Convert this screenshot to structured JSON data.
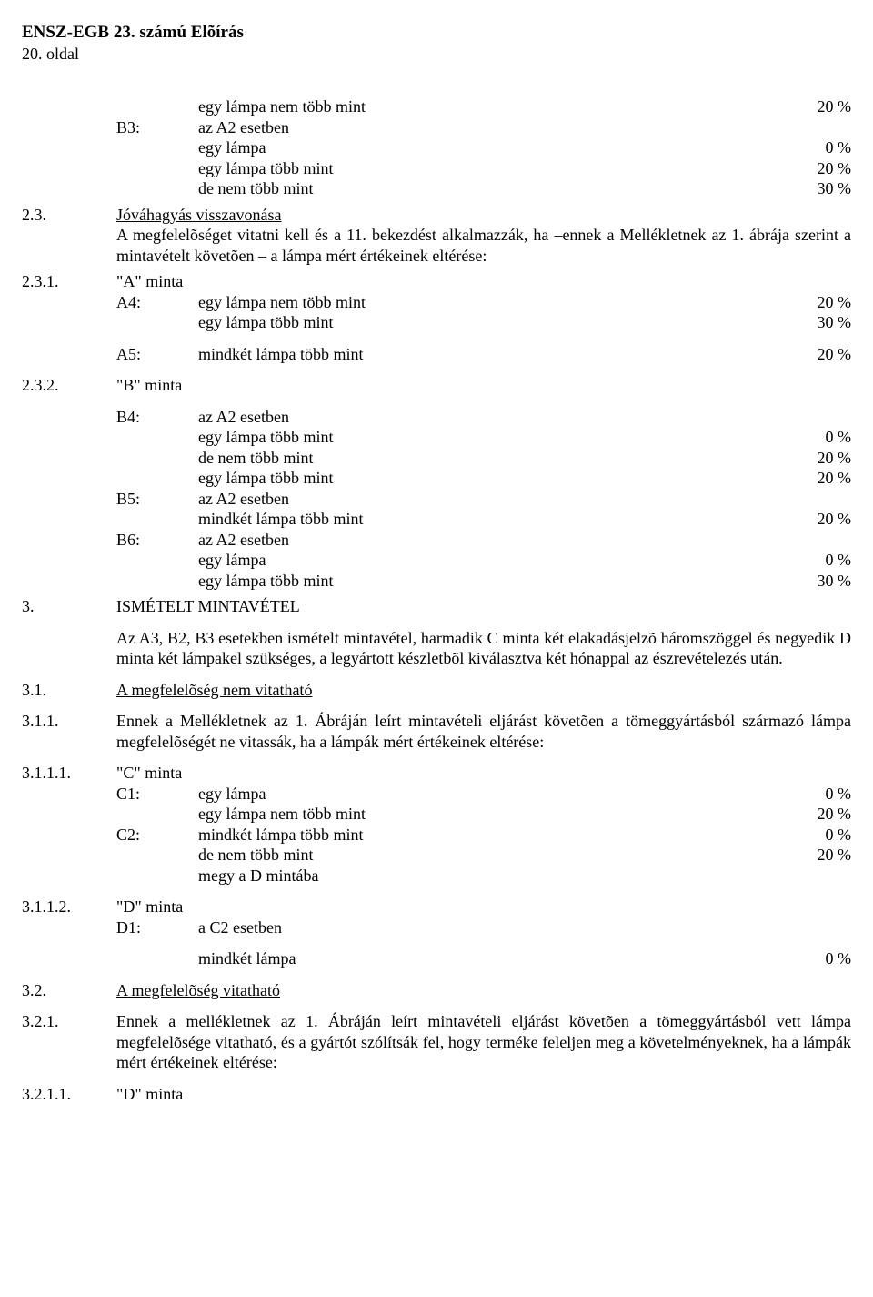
{
  "header": {
    "title": "ENSZ-EGB 23. számú Elõírás",
    "subtitle": "20. oldal"
  },
  "pre_b3": {
    "l1": {
      "text": "egy lámpa nem több mint",
      "pct": "20 %"
    }
  },
  "b3": {
    "label": "B3:",
    "heading": "az A2 esetben",
    "l1": {
      "text": "egy lámpa",
      "pct": "0 %"
    },
    "l2": {
      "text": "egy lámpa több mint",
      "pct": "20 %"
    },
    "l3": {
      "text": "de nem több mint",
      "pct": "30 %"
    }
  },
  "s23": {
    "num": "2.3.",
    "title": "Jóváhagyás visszavonása",
    "p1": "A megfelelõséget vitatni kell és a 11. bekezdést alkalmazzák, ha –ennek a Mellékletnek az 1. ábrája szerint a mintavételt követõen – a lámpa mért értékeinek eltérése:"
  },
  "s231": {
    "num": "2.3.1.",
    "title": "\"A\" minta",
    "a4": {
      "label": "A4:",
      "l1": {
        "text": "egy lámpa nem több mint",
        "pct": "20 %"
      },
      "l2": {
        "text": "egy lámpa több mint",
        "pct": "30 %"
      }
    },
    "a5": {
      "label": "A5:",
      "l1": {
        "text": "mindkét lámpa több mint",
        "pct": "20 %"
      }
    }
  },
  "s232": {
    "num": "2.3.2.",
    "title": "\"B\" minta",
    "b4": {
      "label": "B4:",
      "heading": "az A2 esetben",
      "l1": {
        "text": "egy lámpa több mint",
        "pct": "0 %"
      },
      "l2": {
        "text": "de nem több mint",
        "pct": "20 %"
      },
      "l3": {
        "text": "egy lámpa több mint",
        "pct": "20 %"
      }
    },
    "b5": {
      "label": "B5:",
      "heading": "az A2 esetben",
      "l1": {
        "text": "mindkét lámpa több mint",
        "pct": "20 %"
      }
    },
    "b6": {
      "label": "B6:",
      "heading": "az A2 esetben",
      "l1": {
        "text": "egy lámpa",
        "pct": "0 %"
      },
      "l2": {
        "text": "egy lámpa több mint",
        "pct": "30 %"
      }
    }
  },
  "s3": {
    "num": "3.",
    "title": "ISMÉTELT MINTAVÉTEL",
    "p1": "Az A3, B2, B3 esetekben ismételt mintavétel, harmadik C minta két elakadásjelzõ háromszöggel és negyedik D minta két lámpakel szükséges, a legyártott készletbõl kiválasztva két hónappal az észrevételezés után."
  },
  "s31": {
    "num": "3.1.",
    "title": "A megfelelõség nem vitatható"
  },
  "s311": {
    "num": "3.1.1.",
    "p1": "Ennek a Mellékletnek az 1. Ábráján leírt mintavételi eljárást követõen a tömeggyártásból származó lámpa megfelelõségét ne vitassák, ha a lámpák mért értékeinek eltérése:"
  },
  "s3111": {
    "num": "3.1.1.1.",
    "title": "\"C\" minta",
    "c1": {
      "label": "C1:",
      "l1": {
        "text": "egy lámpa",
        "pct": "0 %"
      },
      "l2": {
        "text": "egy lámpa nem több mint",
        "pct": "20 %"
      }
    },
    "c2": {
      "label": "C2:",
      "l1": {
        "text": "mindkét lámpa több mint",
        "pct": "0 %"
      },
      "l2": {
        "text": "de nem több mint",
        "pct": "20 %"
      },
      "l3": {
        "text": "megy a D mintába"
      }
    }
  },
  "s3112": {
    "num": "3.1.1.2.",
    "title": "\"D\" minta",
    "d1": {
      "label": "D1:",
      "l1": {
        "text": "a C2 esetben"
      },
      "l2": {
        "text": "mindkét lámpa",
        "pct": "0 %"
      }
    }
  },
  "s32": {
    "num": "3.2.",
    "title": "A megfelelõség vitatható"
  },
  "s321": {
    "num": "3.2.1.",
    "p1": "Ennek a mellékletnek az 1. Ábráján leírt mintavételi eljárást követõen a tömeggyártásból vett lámpa megfelelõsége vitatható, és a gyártót szólítsák fel, hogy terméke feleljen meg a követelményeknek, ha a lámpák mért értékeinek eltérése:"
  },
  "s3211": {
    "num": "3.2.1.1.",
    "title": "\"D\" minta"
  }
}
